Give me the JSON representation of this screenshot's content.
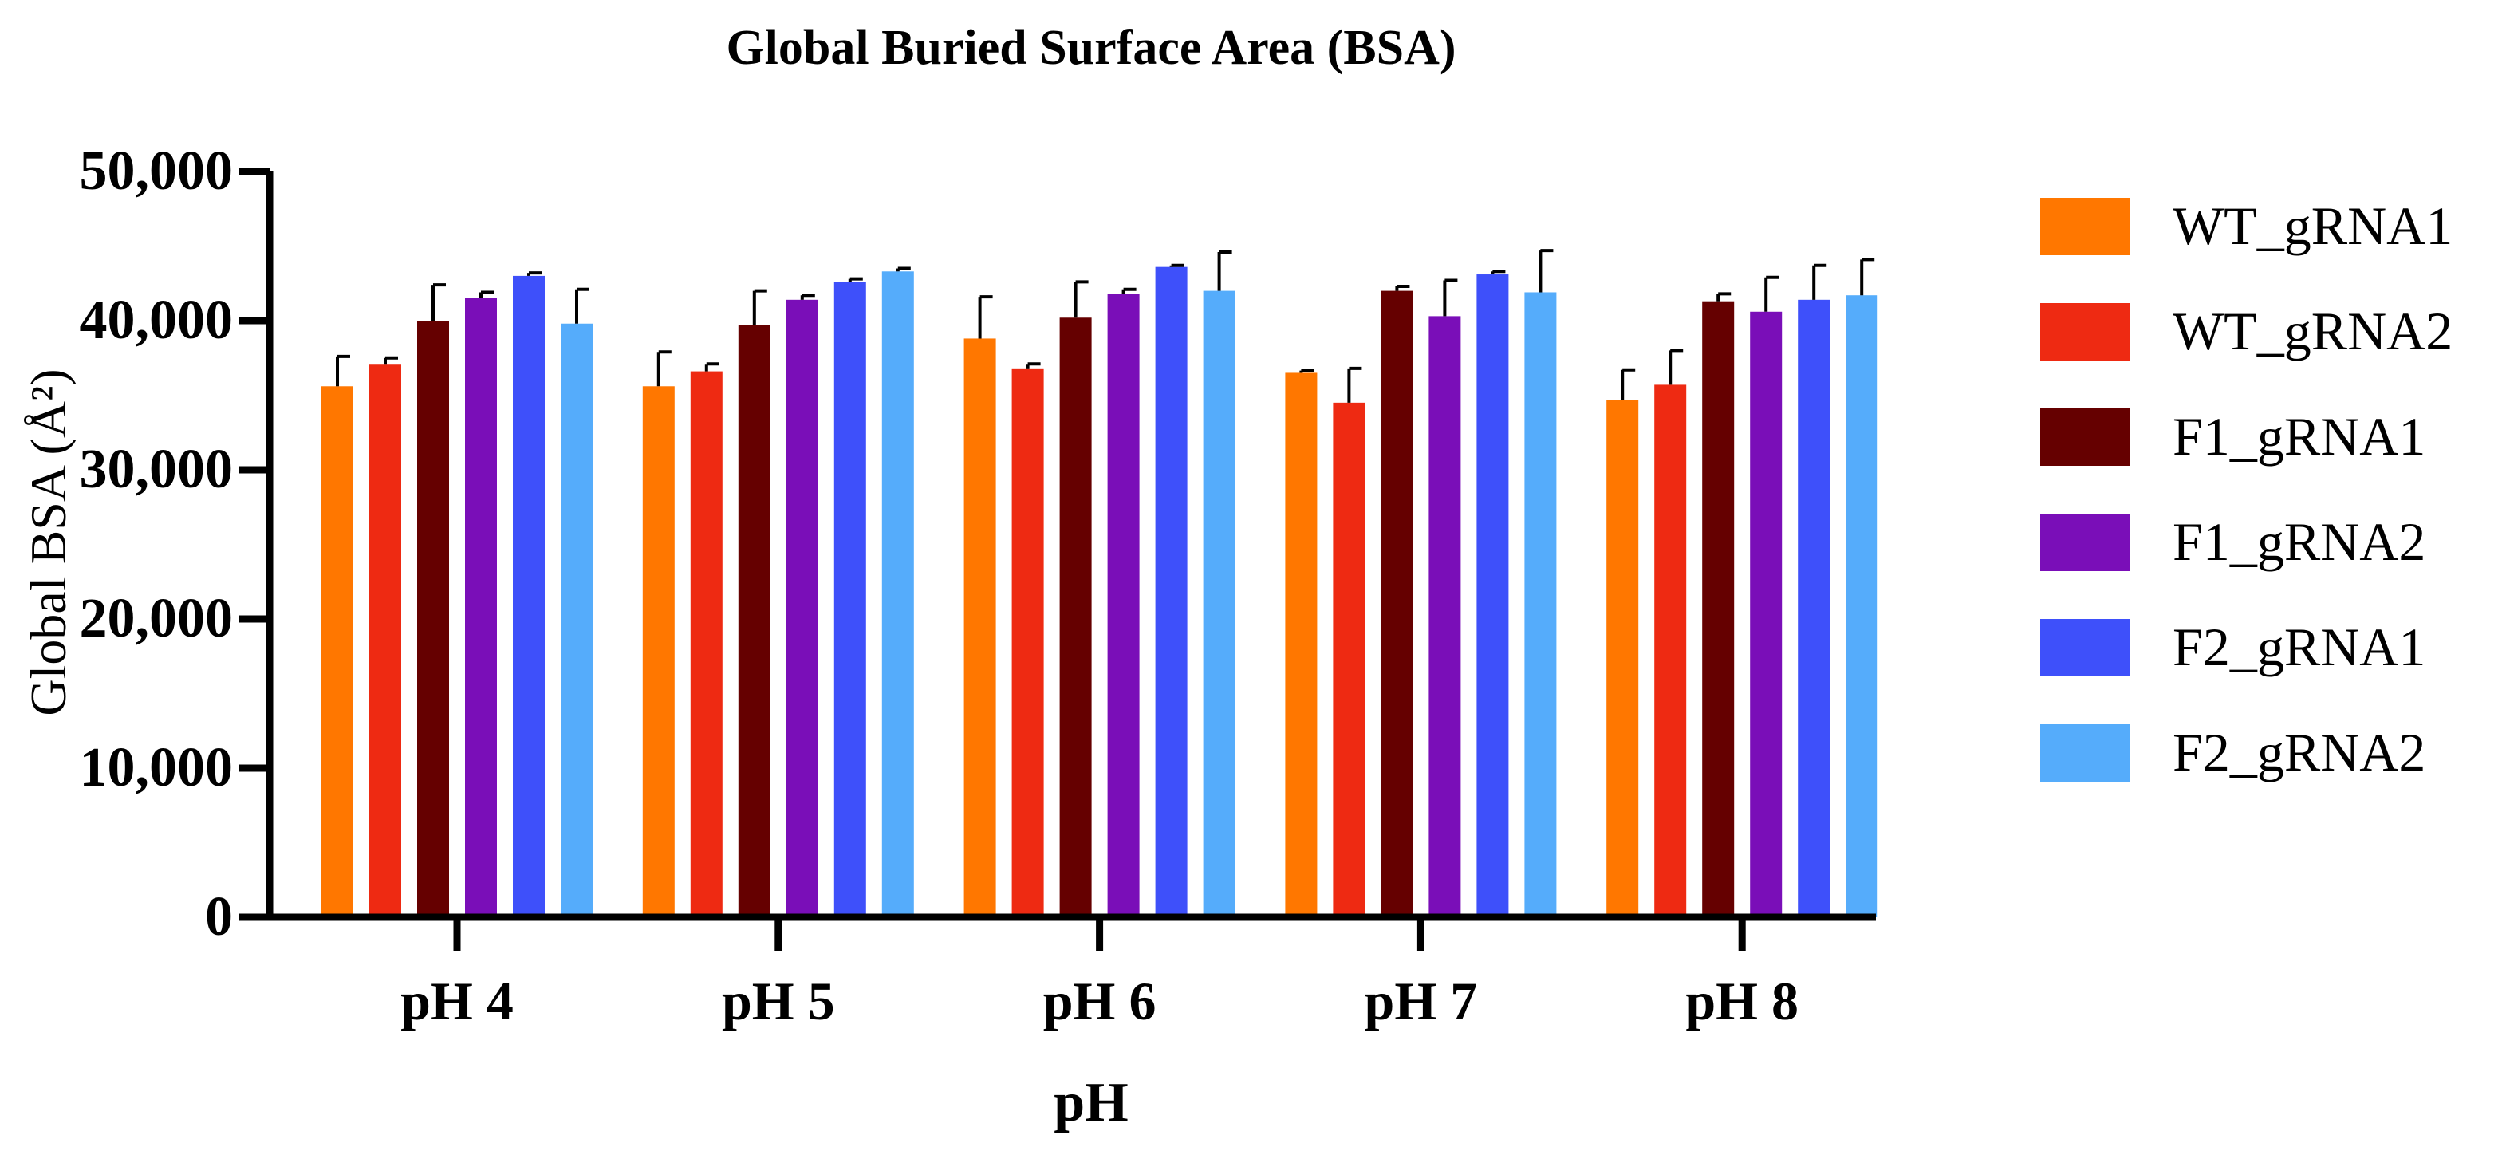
{
  "chart_data": {
    "type": "bar",
    "title": "Global Buried Surface Area (BSA)",
    "xlabel": "pH",
    "ylabel": "Global BSA (Å²)",
    "ylim": [
      0,
      50000
    ],
    "yticks": [
      0,
      10000,
      20000,
      30000,
      40000,
      50000
    ],
    "ytick_labels": [
      "0",
      "10,000",
      "20,000",
      "30,000",
      "40,000",
      "50,000"
    ],
    "categories": [
      "pH 4",
      "pH 5",
      "pH 6",
      "pH 7",
      "pH 8"
    ],
    "legend_position": "right",
    "series": [
      {
        "name": "WT_gRNA1",
        "color": "#FF7700",
        "values": [
          35600,
          35600,
          38800,
          36500,
          34700
        ],
        "errors": [
          2000,
          2300,
          2800,
          150,
          2000
        ]
      },
      {
        "name": "WT_gRNA2",
        "color": "#EE2A12",
        "values": [
          37100,
          36600,
          36800,
          34500,
          35700
        ],
        "errors": [
          400,
          500,
          300,
          2300,
          2300
        ]
      },
      {
        "name": "F1_gRNA1",
        "color": "#650000",
        "values": [
          40000,
          39700,
          40200,
          42000,
          41300
        ],
        "errors": [
          2400,
          2300,
          2400,
          300,
          500
        ]
      },
      {
        "name": "F1_gRNA2",
        "color": "#7A0EB8",
        "values": [
          41500,
          41400,
          41800,
          40300,
          40600
        ],
        "errors": [
          400,
          300,
          300,
          2400,
          2300
        ]
      },
      {
        "name": "F2_gRNA1",
        "color": "#3E50FA",
        "values": [
          43000,
          42600,
          43600,
          43100,
          41400
        ],
        "errors": [
          200,
          200,
          100,
          200,
          2300
        ]
      },
      {
        "name": "F2_gRNA2",
        "color": "#55ACFB",
        "values": [
          39800,
          43300,
          42000,
          41900,
          41700
        ],
        "errors": [
          2300,
          200,
          2600,
          2800,
          2400
        ]
      }
    ]
  }
}
